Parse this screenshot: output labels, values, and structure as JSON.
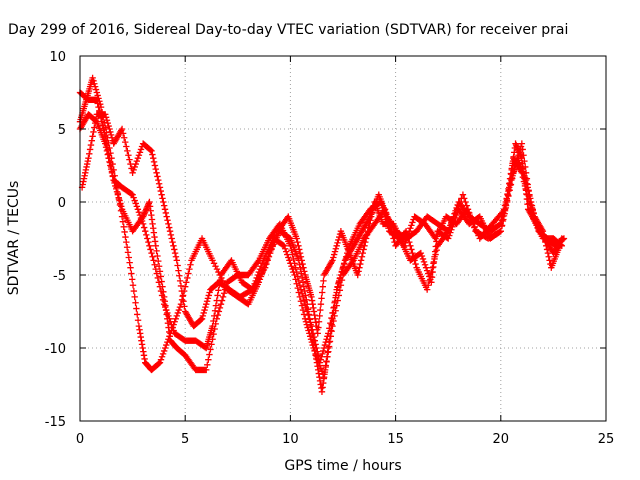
{
  "chart_data": {
    "type": "scatter",
    "title": "Day 299 of 2016, Sidereal Day-to-day VTEC variation (SDTVAR) for receiver prai",
    "xlabel": "GPS time / hours",
    "ylabel": "SDTVAR / TECUs",
    "xlim": [
      0,
      25
    ],
    "ylim": [
      -15,
      10
    ],
    "xticks": [
      "0",
      "5",
      "10",
      "15",
      "20",
      "25"
    ],
    "yticks": [
      "10",
      "5",
      "0",
      "-5",
      "-10",
      "-15"
    ],
    "grid": true,
    "marker": "+",
    "color": "#ff0000",
    "series": [
      {
        "name": "track-1",
        "points": [
          [
            0,
            5.5
          ],
          [
            0.3,
            7.0
          ],
          [
            0.6,
            8.5
          ],
          [
            1.0,
            6.5
          ],
          [
            1.5,
            3.0
          ],
          [
            2.0,
            -1.0
          ],
          [
            2.4,
            -4.5
          ],
          [
            2.8,
            -8.5
          ],
          [
            3.1,
            -11.0
          ],
          [
            3.4,
            -11.5
          ],
          [
            3.8,
            -11.0
          ],
          [
            4.3,
            -9.0
          ],
          [
            4.8,
            -7.0
          ],
          [
            5.3,
            -4.0
          ],
          [
            5.8,
            -2.5
          ],
          [
            6.3,
            -4.0
          ],
          [
            7.0,
            -6.0
          ],
          [
            7.5,
            -6.5
          ],
          [
            8.0,
            -7.0
          ],
          [
            8.5,
            -5.5
          ],
          [
            9.0,
            -3.5
          ],
          [
            9.5,
            -2.0
          ],
          [
            10.0,
            -2.5
          ],
          [
            10.4,
            -4.0
          ],
          [
            10.8,
            -7.0
          ],
          [
            11.2,
            -10.5
          ],
          [
            11.5,
            -13.0
          ],
          [
            11.8,
            -10.0
          ],
          [
            12.2,
            -6.0
          ],
          [
            12.6,
            -4.0
          ],
          [
            13.0,
            -3.0
          ],
          [
            13.4,
            -2.0
          ],
          [
            13.8,
            -1.0
          ],
          [
            14.2,
            0.5
          ],
          [
            14.6,
            -1.0
          ],
          [
            15.0,
            -2.0
          ],
          [
            15.5,
            -2.5
          ],
          [
            16.0,
            -2.0
          ],
          [
            16.5,
            -1.0
          ],
          [
            17.0,
            -1.5
          ],
          [
            17.5,
            -2.0
          ],
          [
            18.0,
            0.0
          ],
          [
            18.5,
            -1.0
          ],
          [
            19.0,
            -1.5
          ],
          [
            19.5,
            -2.0
          ],
          [
            20.0,
            -1.5
          ],
          [
            20.4,
            1.0
          ],
          [
            20.7,
            4.0
          ],
          [
            21.0,
            3.0
          ],
          [
            21.3,
            -0.5
          ],
          [
            21.7,
            -1.5
          ],
          [
            22.1,
            -2.5
          ],
          [
            22.5,
            -3.5
          ],
          [
            22.9,
            -2.5
          ]
        ]
      },
      {
        "name": "track-2",
        "points": [
          [
            0,
            7.5
          ],
          [
            0.4,
            7.0
          ],
          [
            0.8,
            7.0
          ],
          [
            1.2,
            4.5
          ],
          [
            1.6,
            1.5
          ],
          [
            2.0,
            -0.5
          ],
          [
            2.5,
            -2.0
          ],
          [
            3.0,
            -1.0
          ],
          [
            3.3,
            0.0
          ],
          [
            3.6,
            -3.0
          ],
          [
            4.0,
            -6.5
          ],
          [
            4.3,
            -9.5
          ],
          [
            4.6,
            -10.0
          ],
          [
            5.0,
            -10.5
          ],
          [
            5.5,
            -11.5
          ],
          [
            6.0,
            -11.5
          ],
          [
            6.5,
            -8.0
          ],
          [
            7.0,
            -5.5
          ],
          [
            7.5,
            -5.0
          ],
          [
            8.0,
            -5.0
          ],
          [
            8.5,
            -4.0
          ],
          [
            9.0,
            -2.5
          ],
          [
            9.5,
            -1.5
          ],
          [
            10.0,
            -3.0
          ],
          [
            10.5,
            -6.0
          ],
          [
            11.0,
            -8.5
          ],
          [
            11.4,
            -11.0
          ],
          [
            11.8,
            -9.0
          ],
          [
            12.3,
            -5.5
          ],
          [
            12.8,
            -3.0
          ],
          [
            13.3,
            -1.5
          ],
          [
            13.8,
            -0.5
          ],
          [
            14.3,
            0.0
          ],
          [
            14.7,
            -2.0
          ],
          [
            15.2,
            -2.5
          ],
          [
            15.7,
            -4.0
          ],
          [
            16.2,
            -3.5
          ],
          [
            16.7,
            -5.5
          ],
          [
            17.0,
            -2.0
          ],
          [
            17.5,
            -2.5
          ],
          [
            18.0,
            -0.5
          ],
          [
            18.5,
            -1.5
          ],
          [
            19.0,
            -1.0
          ],
          [
            19.5,
            -2.5
          ],
          [
            20.0,
            -2.0
          ],
          [
            20.5,
            1.5
          ],
          [
            20.8,
            3.0
          ],
          [
            21.2,
            1.5
          ],
          [
            21.6,
            -1.0
          ],
          [
            22.0,
            -2.0
          ],
          [
            22.4,
            -4.5
          ],
          [
            22.8,
            -3.0
          ]
        ]
      },
      {
        "name": "track-3",
        "points": [
          [
            0,
            5.0
          ],
          [
            0.4,
            6.0
          ],
          [
            0.8,
            5.5
          ],
          [
            1.2,
            4.0
          ],
          [
            1.6,
            1.5
          ],
          [
            2.0,
            1.0
          ],
          [
            2.5,
            0.5
          ],
          [
            3.0,
            -1.5
          ],
          [
            3.5,
            -4.0
          ],
          [
            4.0,
            -7.0
          ],
          [
            4.5,
            -9.0
          ],
          [
            5.0,
            -9.5
          ],
          [
            5.5,
            -9.5
          ],
          [
            6.0,
            -10.0
          ],
          [
            6.3,
            -8.5
          ],
          [
            6.7,
            -5.0
          ],
          [
            7.2,
            -4.0
          ],
          [
            7.7,
            -5.5
          ],
          [
            8.2,
            -6.0
          ],
          [
            8.7,
            -4.0
          ],
          [
            9.2,
            -2.5
          ],
          [
            9.7,
            -3.0
          ],
          [
            10.2,
            -5.0
          ],
          [
            10.7,
            -8.0
          ],
          [
            11.1,
            -10.0
          ],
          [
            11.6,
            -12.0
          ],
          [
            12.0,
            -8.5
          ],
          [
            12.5,
            -5.0
          ],
          [
            13.0,
            -4.0
          ],
          [
            13.5,
            -2.5
          ],
          [
            14.0,
            -1.5
          ],
          [
            14.5,
            -0.5
          ],
          [
            15.0,
            -3.0
          ],
          [
            15.5,
            -2.0
          ],
          [
            16.0,
            -4.5
          ],
          [
            16.5,
            -6.0
          ],
          [
            17.0,
            -3.0
          ],
          [
            17.5,
            -2.0
          ],
          [
            18.2,
            0.5
          ],
          [
            18.8,
            -2.0
          ],
          [
            19.4,
            -2.5
          ],
          [
            20.0,
            -2.0
          ],
          [
            20.6,
            2.0
          ],
          [
            21.0,
            4.0
          ],
          [
            21.4,
            0.0
          ],
          [
            21.8,
            -2.0
          ],
          [
            22.2,
            -2.5
          ],
          [
            22.6,
            -3.0
          ],
          [
            23.0,
            -2.5
          ]
        ]
      },
      {
        "name": "track-4",
        "points": [
          [
            0.1,
            1.0
          ],
          [
            0.4,
            3.0
          ],
          [
            0.8,
            6.0
          ],
          [
            1.2,
            6.0
          ],
          [
            1.6,
            4.0
          ],
          [
            2.0,
            5.0
          ],
          [
            2.5,
            2.0
          ],
          [
            3.0,
            4.0
          ],
          [
            3.4,
            3.5
          ],
          [
            3.8,
            1.0
          ],
          [
            4.2,
            -1.5
          ],
          [
            4.6,
            -4.0
          ],
          [
            5.0,
            -7.5
          ],
          [
            5.4,
            -8.5
          ],
          [
            5.8,
            -8.0
          ],
          [
            6.2,
            -6.0
          ],
          [
            6.6,
            -5.5
          ],
          [
            7.1,
            -6.0
          ],
          [
            7.6,
            -6.5
          ],
          [
            8.2,
            -6.0
          ],
          [
            8.8,
            -4.5
          ],
          [
            9.4,
            -2.0
          ],
          [
            9.9,
            -1.0
          ],
          [
            10.3,
            -2.5
          ],
          [
            10.7,
            -5.0
          ],
          [
            11.0,
            -6.5
          ],
          [
            11.3,
            -9.0
          ],
          [
            11.6,
            -5.0
          ],
          [
            12.0,
            -4.0
          ],
          [
            12.4,
            -2.0
          ],
          [
            12.8,
            -3.5
          ],
          [
            13.2,
            -5.0
          ],
          [
            13.6,
            -2.5
          ],
          [
            14.0,
            0.0
          ],
          [
            14.4,
            -1.5
          ],
          [
            14.9,
            -1.5
          ],
          [
            15.4,
            -3.0
          ],
          [
            15.9,
            -1.0
          ],
          [
            16.4,
            -1.5
          ],
          [
            16.9,
            -2.5
          ],
          [
            17.4,
            -1.0
          ],
          [
            17.9,
            -1.5
          ],
          [
            18.4,
            -0.5
          ],
          [
            19.0,
            -2.5
          ],
          [
            19.6,
            -1.5
          ],
          [
            20.2,
            -0.5
          ],
          [
            20.6,
            3.0
          ],
          [
            21.0,
            2.0
          ],
          [
            21.5,
            -1.0
          ],
          [
            22.0,
            -2.5
          ],
          [
            22.5,
            -2.5
          ],
          [
            22.9,
            -3.0
          ]
        ]
      }
    ]
  }
}
